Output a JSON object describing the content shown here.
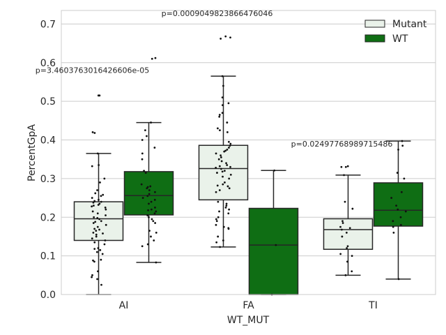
{
  "chart_data": {
    "type": "box",
    "xlabel": "WT_MUT",
    "ylabel": "PercentGpA",
    "ylim": [
      0,
      0.735
    ],
    "yticks": [
      0.0,
      0.1,
      0.2,
      0.3,
      0.4,
      0.5,
      0.6,
      0.7
    ],
    "ytick_labels": [
      "0.0",
      "0.1",
      "0.2",
      "0.3",
      "0.4",
      "0.5",
      "0.6",
      "0.7"
    ],
    "categories": [
      "AI",
      "FA",
      "TI"
    ],
    "grid": "horizontal",
    "legend": {
      "position": "top-right",
      "entries": [
        {
          "name": "Mutant",
          "color": "#eaf2ea"
        },
        {
          "name": "WT",
          "color": "#0f6e14"
        }
      ]
    },
    "series": [
      {
        "name": "Mutant",
        "color": "#eaf2ea",
        "boxes": [
          {
            "category": "AI",
            "whisker_low": 0.0,
            "q1": 0.14,
            "median": 0.196,
            "q3": 0.24,
            "whisker_high": 0.365,
            "points": [
              0.515,
              0.515,
              0.42,
              0.418,
              0.365,
              0.335,
              0.332,
              0.3,
              0.29,
              0.27,
              0.262,
              0.258,
              0.255,
              0.25,
              0.245,
              0.242,
              0.24,
              0.238,
              0.235,
              0.232,
              0.23,
              0.228,
              0.225,
              0.22,
              0.215,
              0.21,
              0.205,
              0.2,
              0.198,
              0.195,
              0.19,
              0.188,
              0.185,
              0.18,
              0.175,
              0.17,
              0.168,
              0.165,
              0.16,
              0.158,
              0.155,
              0.15,
              0.145,
              0.14,
              0.135,
              0.13,
              0.12,
              0.118,
              0.115,
              0.11,
              0.105,
              0.09,
              0.088,
              0.085,
              0.06,
              0.05,
              0.045,
              0.04,
              0.025
            ]
          },
          {
            "category": "FA",
            "whisker_low": 0.123,
            "q1": 0.245,
            "median": 0.326,
            "q3": 0.386,
            "whisker_high": 0.565,
            "points": [
              0.668,
              0.665,
              0.662,
              0.565,
              0.54,
              0.51,
              0.495,
              0.49,
              0.47,
              0.465,
              0.46,
              0.445,
              0.43,
              0.425,
              0.42,
              0.395,
              0.39,
              0.385,
              0.38,
              0.375,
              0.372,
              0.37,
              0.365,
              0.36,
              0.355,
              0.35,
              0.345,
              0.34,
              0.335,
              0.332,
              0.33,
              0.328,
              0.325,
              0.32,
              0.318,
              0.315,
              0.31,
              0.305,
              0.3,
              0.29,
              0.285,
              0.282,
              0.28,
              0.275,
              0.27,
              0.265,
              0.24,
              0.235,
              0.23,
              0.225,
              0.22,
              0.215,
              0.21,
              0.2,
              0.195,
              0.19,
              0.18,
              0.175,
              0.172,
              0.17,
              0.15,
              0.14,
              0.135,
              0.123
            ]
          },
          {
            "category": "TI",
            "whisker_low": 0.05,
            "q1": 0.117,
            "median": 0.168,
            "q3": 0.196,
            "whisker_high": 0.309,
            "points": [
              0.332,
              0.33,
              0.33,
              0.309,
              0.24,
              0.222,
              0.19,
              0.185,
              0.175,
              0.172,
              0.168,
              0.16,
              0.15,
              0.125,
              0.12,
              0.105,
              0.1,
              0.085,
              0.06,
              0.05
            ]
          }
        ]
      },
      {
        "name": "WT",
        "color": "#0f6e14",
        "boxes": [
          {
            "category": "AI",
            "whisker_low": 0.083,
            "q1": 0.206,
            "median": 0.256,
            "q3": 0.318,
            "whisker_high": 0.445,
            "points": [
              0.612,
              0.61,
              0.445,
              0.425,
              0.41,
              0.4,
              0.38,
              0.365,
              0.35,
              0.32,
              0.315,
              0.285,
              0.28,
              0.278,
              0.275,
              0.27,
              0.265,
              0.26,
              0.255,
              0.25,
              0.245,
              0.24,
              0.235,
              0.225,
              0.22,
              0.218,
              0.215,
              0.21,
              0.205,
              0.2,
              0.195,
              0.19,
              0.185,
              0.165,
              0.16,
              0.15,
              0.14,
              0.13,
              0.125,
              0.083
            ]
          },
          {
            "category": "FA",
            "whisker_low": 0.0,
            "q1": 0.0,
            "median": 0.128,
            "q3": 0.223,
            "whisker_high": 0.321,
            "points": [
              0.321,
              0.128,
              0.0
            ]
          },
          {
            "category": "TI",
            "whisker_low": 0.04,
            "q1": 0.177,
            "median": 0.218,
            "q3": 0.289,
            "whisker_high": 0.397,
            "points": [
              0.397,
              0.385,
              0.375,
              0.315,
              0.3,
              0.265,
              0.25,
              0.23,
              0.22,
              0.215,
              0.2,
              0.19,
              0.18,
              0.175,
              0.16,
              0.04
            ]
          }
        ]
      }
    ],
    "annotations": [
      {
        "text": "p=3.4603763016426606e-05",
        "category": "AI",
        "y": 0.573
      },
      {
        "text": "p=0.0009049823866476046",
        "category": "FA",
        "y": 0.721
      },
      {
        "text": "p=0.0249776898971548​6",
        "category": "TI",
        "y": 0.383
      }
    ]
  }
}
